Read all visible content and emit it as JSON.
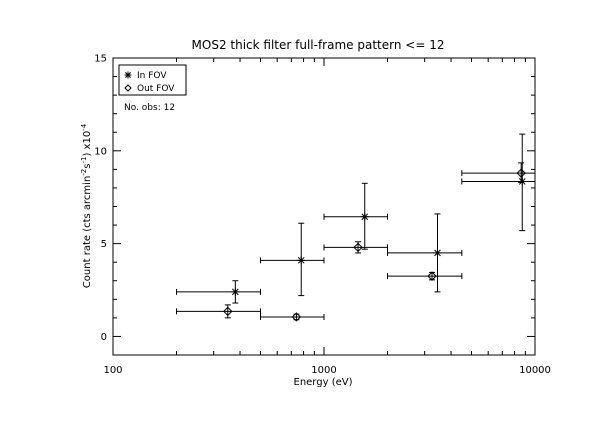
{
  "chart_data": {
    "type": "scatter",
    "title": "MOS2 thick filter full-frame pattern <= 12",
    "xlabel": "Energy (eV)",
    "ylabel": {
      "prefix": "Count rate (cts arcmin",
      "exp1": "-2",
      "mid": "s",
      "exp2": "-1",
      "suffix": ") x10",
      "exp3": "-4"
    },
    "x_scale": "log",
    "xlim": [
      100,
      10000
    ],
    "ylim": [
      -1,
      15
    ],
    "x_ticks": [
      100,
      1000,
      10000
    ],
    "x_tick_labels": [
      "100",
      "1000",
      "10000"
    ],
    "y_ticks": [
      0,
      5,
      10,
      15
    ],
    "y_tick_labels": [
      "0",
      "5",
      "10",
      "15"
    ],
    "legend": {
      "position": "top-left",
      "entries": [
        {
          "symbol": "*",
          "label": "In FOV"
        },
        {
          "symbol": "◇",
          "label": "Out FOV"
        }
      ]
    },
    "annotation": "No. obs: 12",
    "series": [
      {
        "name": "In FOV",
        "marker": "asterisk",
        "points": [
          {
            "x": 380,
            "y": 2.4,
            "xmin": 200,
            "xmax": 500,
            "ymin": 1.8,
            "ymax": 3.0
          },
          {
            "x": 780,
            "y": 4.1,
            "xmin": 500,
            "xmax": 1000,
            "ymin": 2.2,
            "ymax": 6.1
          },
          {
            "x": 1560,
            "y": 6.45,
            "xmin": 1000,
            "xmax": 2000,
            "ymin": 4.7,
            "ymax": 8.25
          },
          {
            "x": 3450,
            "y": 4.5,
            "xmin": 2000,
            "xmax": 4500,
            "ymin": 2.4,
            "ymax": 6.6
          },
          {
            "x": 8700,
            "y": 8.35,
            "xmin": 4500,
            "xmax": 10000,
            "ymin": 5.7,
            "ymax": 10.9
          }
        ]
      },
      {
        "name": "Out FOV",
        "marker": "diamond",
        "points": [
          {
            "x": 350,
            "y": 1.35,
            "xmin": 200,
            "xmax": 500,
            "ymin": 1.0,
            "ymax": 1.7
          },
          {
            "x": 740,
            "y": 1.05,
            "xmin": 500,
            "xmax": 1000,
            "ymin": 0.9,
            "ymax": 1.2
          },
          {
            "x": 1450,
            "y": 4.8,
            "xmin": 1000,
            "xmax": 2000,
            "ymin": 4.5,
            "ymax": 5.1
          },
          {
            "x": 3250,
            "y": 3.25,
            "xmin": 2000,
            "xmax": 4500,
            "ymin": 3.05,
            "ymax": 3.45
          },
          {
            "x": 8600,
            "y": 8.8,
            "xmin": 4500,
            "xmax": 10000,
            "ymin": 8.3,
            "ymax": 9.35
          }
        ]
      }
    ]
  }
}
